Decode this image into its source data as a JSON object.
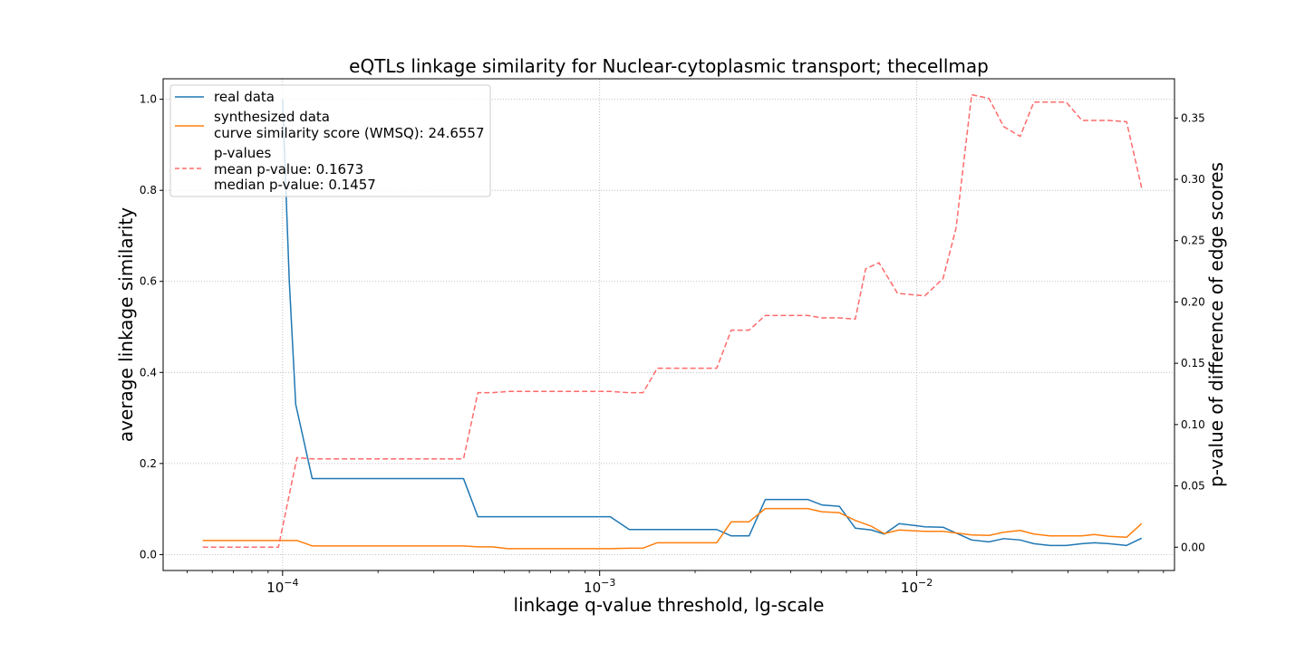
{
  "chart_data": {
    "type": "line",
    "title": "eQTLs linkage similarity for Nuclear-cytoplasmic transport; thecellmap",
    "xlabel": "linkage q-value threshold, lg-scale",
    "ylabel": "average linkage similarity",
    "ylabel_right": "p-value of difference of edge scores",
    "xscale": "log",
    "xlim": [
      4.2e-05,
      0.065
    ],
    "ylim": [
      -0.035,
      1.045
    ],
    "ylim_right": [
      -0.019,
      0.382
    ],
    "x_ticks": [
      {
        "value": 0.0001,
        "base": "10",
        "exp": "−4"
      },
      {
        "value": 0.001,
        "base": "10",
        "exp": "−3"
      },
      {
        "value": 0.01,
        "base": "10",
        "exp": "−2"
      }
    ],
    "y_ticks": [
      "0.0",
      "0.2",
      "0.4",
      "0.6",
      "0.8",
      "1.0"
    ],
    "y_ticks_right": [
      "0.00",
      "0.05",
      "0.10",
      "0.15",
      "0.20",
      "0.25",
      "0.30",
      "0.35"
    ],
    "grid": true,
    "legend_position": "top-left",
    "legend": [
      {
        "label": [
          "real data"
        ],
        "color": "#1f77b4",
        "style": "solid"
      },
      {
        "label": [
          "synthesized data",
          "curve similarity score (WMSQ): 24.6557"
        ],
        "color": "#ff7f0e",
        "style": "solid"
      },
      {
        "label": [
          "p-values",
          "mean p-value: 0.1673",
          "median p-value: 0.1457"
        ],
        "color": "#ff6b6b",
        "style": "dashed"
      }
    ],
    "series": [
      {
        "name": "real data",
        "axis": "left",
        "color": "#1f77b4",
        "points": [
          [
            0.0001,
            1.0
          ],
          [
            0.000105,
            0.6
          ],
          [
            0.00011,
            0.33
          ],
          [
            0.000124,
            0.167
          ],
          [
            0.000372,
            0.167
          ],
          [
            0.000413,
            0.083
          ],
          [
            0.00108,
            0.083
          ],
          [
            0.00124,
            0.055
          ],
          [
            0.00234,
            0.055
          ],
          [
            0.0026,
            0.041
          ],
          [
            0.00296,
            0.041
          ],
          [
            0.00333,
            0.121
          ],
          [
            0.00453,
            0.121
          ],
          [
            0.00502,
            0.109
          ],
          [
            0.0057,
            0.106
          ],
          [
            0.0064,
            0.058
          ],
          [
            0.0072,
            0.054
          ],
          [
            0.0079,
            0.045
          ],
          [
            0.0088,
            0.068
          ],
          [
            0.0106,
            0.061
          ],
          [
            0.0121,
            0.06
          ],
          [
            0.0149,
            0.032
          ],
          [
            0.0169,
            0.028
          ],
          [
            0.0188,
            0.035
          ],
          [
            0.0212,
            0.032
          ],
          [
            0.0234,
            0.024
          ],
          [
            0.0263,
            0.02
          ],
          [
            0.0296,
            0.02
          ],
          [
            0.0332,
            0.024
          ],
          [
            0.0363,
            0.026
          ],
          [
            0.0404,
            0.024
          ],
          [
            0.0459,
            0.02
          ],
          [
            0.0512,
            0.036
          ]
        ]
      },
      {
        "name": "synthesized data",
        "axis": "left",
        "color": "#ff7f0e",
        "points": [
          [
            5.6e-05,
            0.031
          ],
          [
            0.0001,
            0.031
          ],
          [
            0.000111,
            0.031
          ],
          [
            0.000124,
            0.019
          ],
          [
            0.000372,
            0.019
          ],
          [
            0.000413,
            0.017
          ],
          [
            0.000459,
            0.017
          ],
          [
            0.000513,
            0.013
          ],
          [
            0.00108,
            0.013
          ],
          [
            0.00124,
            0.014
          ],
          [
            0.00137,
            0.014
          ],
          [
            0.00152,
            0.026
          ],
          [
            0.00234,
            0.026
          ],
          [
            0.0026,
            0.072
          ],
          [
            0.00296,
            0.072
          ],
          [
            0.00333,
            0.101
          ],
          [
            0.00453,
            0.101
          ],
          [
            0.00502,
            0.094
          ],
          [
            0.0057,
            0.092
          ],
          [
            0.0064,
            0.075
          ],
          [
            0.0072,
            0.062
          ],
          [
            0.0079,
            0.046
          ],
          [
            0.0088,
            0.054
          ],
          [
            0.0106,
            0.051
          ],
          [
            0.0121,
            0.051
          ],
          [
            0.0149,
            0.043
          ],
          [
            0.0169,
            0.042
          ],
          [
            0.0188,
            0.049
          ],
          [
            0.0212,
            0.053
          ],
          [
            0.0234,
            0.045
          ],
          [
            0.0263,
            0.041
          ],
          [
            0.0296,
            0.041
          ],
          [
            0.0332,
            0.041
          ],
          [
            0.0363,
            0.044
          ],
          [
            0.0404,
            0.04
          ],
          [
            0.0459,
            0.038
          ],
          [
            0.0512,
            0.068
          ]
        ]
      },
      {
        "name": "p-values",
        "axis": "right",
        "color": "#ff6b6b",
        "dashed": true,
        "points": [
          [
            5.6e-05,
            0.0
          ],
          [
            9.7e-05,
            0.0
          ],
          [
            0.000111,
            0.073
          ],
          [
            0.000124,
            0.072
          ],
          [
            0.000372,
            0.072
          ],
          [
            0.000413,
            0.126
          ],
          [
            0.000459,
            0.126
          ],
          [
            0.000513,
            0.127
          ],
          [
            0.00108,
            0.127
          ],
          [
            0.00124,
            0.126
          ],
          [
            0.00137,
            0.126
          ],
          [
            0.00152,
            0.146
          ],
          [
            0.00234,
            0.146
          ],
          [
            0.0026,
            0.177
          ],
          [
            0.00296,
            0.177
          ],
          [
            0.00333,
            0.189
          ],
          [
            0.00453,
            0.189
          ],
          [
            0.00502,
            0.187
          ],
          [
            0.0057,
            0.187
          ],
          [
            0.0064,
            0.186
          ],
          [
            0.0069,
            0.227
          ],
          [
            0.0076,
            0.232
          ],
          [
            0.0087,
            0.207
          ],
          [
            0.0106,
            0.205
          ],
          [
            0.0121,
            0.219
          ],
          [
            0.0133,
            0.26
          ],
          [
            0.0149,
            0.369
          ],
          [
            0.0169,
            0.366
          ],
          [
            0.0188,
            0.343
          ],
          [
            0.0212,
            0.335
          ],
          [
            0.0234,
            0.363
          ],
          [
            0.0263,
            0.363
          ],
          [
            0.0296,
            0.363
          ],
          [
            0.0332,
            0.348
          ],
          [
            0.0363,
            0.348
          ],
          [
            0.0404,
            0.348
          ],
          [
            0.0459,
            0.347
          ],
          [
            0.0512,
            0.293
          ]
        ]
      }
    ]
  }
}
